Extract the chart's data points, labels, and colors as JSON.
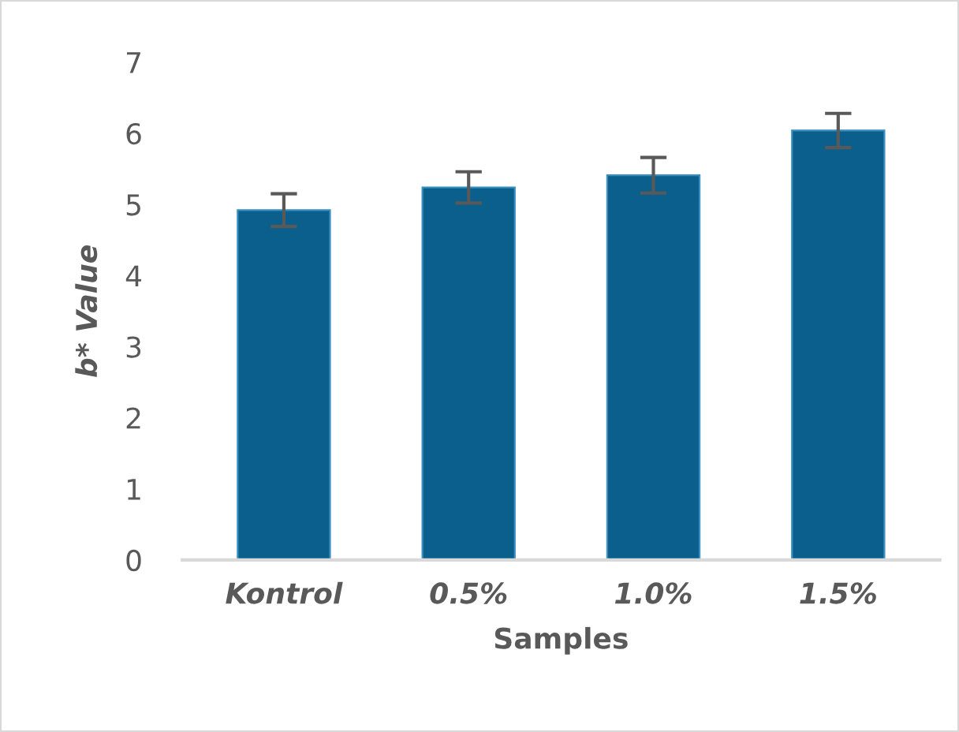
{
  "chart_data": {
    "type": "bar",
    "xlabel": "Samples",
    "ylabel": "b* Value",
    "categories": [
      "Kontrol",
      "0.5%",
      "1.0%",
      "1.5%"
    ],
    "values": [
      4.92,
      5.24,
      5.41,
      6.04
    ],
    "errors": [
      0.23,
      0.22,
      0.25,
      0.24
    ],
    "color": "#0a5f8c",
    "ylim": [
      0,
      7
    ],
    "yticks": [
      0,
      1,
      2,
      3,
      4,
      5,
      6,
      7
    ],
    "grid": false
  }
}
